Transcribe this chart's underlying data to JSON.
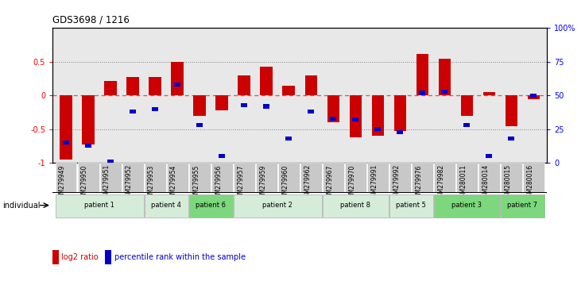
{
  "title": "GDS3698 / 1216",
  "samples": [
    "GSM279949",
    "GSM279950",
    "GSM279951",
    "GSM279952",
    "GSM279953",
    "GSM279954",
    "GSM279955",
    "GSM279956",
    "GSM279957",
    "GSM279959",
    "GSM279960",
    "GSM279962",
    "GSM279967",
    "GSM279970",
    "GSM279991",
    "GSM279992",
    "GSM279976",
    "GSM279982",
    "GSM280011",
    "GSM280014",
    "GSM280015",
    "GSM280016"
  ],
  "log2_ratio": [
    -0.95,
    -0.72,
    0.22,
    0.28,
    0.28,
    0.5,
    -0.3,
    -0.22,
    0.3,
    0.43,
    0.15,
    0.3,
    -0.4,
    -0.62,
    -0.6,
    -0.52,
    0.62,
    0.55,
    -0.3,
    0.05,
    -0.45,
    -0.05
  ],
  "percentile": [
    15,
    13,
    1,
    38,
    40,
    58,
    28,
    5,
    43,
    42,
    18,
    38,
    33,
    32,
    25,
    23,
    52,
    53,
    28,
    5,
    18,
    50
  ],
  "patients": [
    {
      "label": "patient 1",
      "start": 0,
      "end": 4,
      "color": "#d5ecd9"
    },
    {
      "label": "patient 4",
      "start": 4,
      "end": 6,
      "color": "#d5ecd9"
    },
    {
      "label": "patient 6",
      "start": 6,
      "end": 8,
      "color": "#7dd87d"
    },
    {
      "label": "patient 2",
      "start": 8,
      "end": 12,
      "color": "#d5ecd9"
    },
    {
      "label": "patient 8",
      "start": 12,
      "end": 15,
      "color": "#d5ecd9"
    },
    {
      "label": "patient 5",
      "start": 15,
      "end": 17,
      "color": "#d5ecd9"
    },
    {
      "label": "patient 3",
      "start": 17,
      "end": 20,
      "color": "#7dd87d"
    },
    {
      "label": "patient 7",
      "start": 20,
      "end": 22,
      "color": "#7dd87d"
    }
  ],
  "ylim": [
    -1.0,
    1.0
  ],
  "yticks_left": [
    -1.0,
    -0.5,
    0.0,
    0.5
  ],
  "ytick_labels_left": [
    "-1",
    "-0.5",
    "0",
    "0.5"
  ],
  "ytick_labels_right": [
    "0",
    "25",
    "50",
    "75",
    "100%"
  ],
  "bar_color": "#cc0000",
  "percentile_color": "#0000cc",
  "zero_line_color": "#ff4444",
  "dotted_line_color": "#666666",
  "background_color": "#ffffff",
  "plot_bg_color": "#e8e8e8",
  "bar_width": 0.55,
  "perc_bar_width": 0.28
}
